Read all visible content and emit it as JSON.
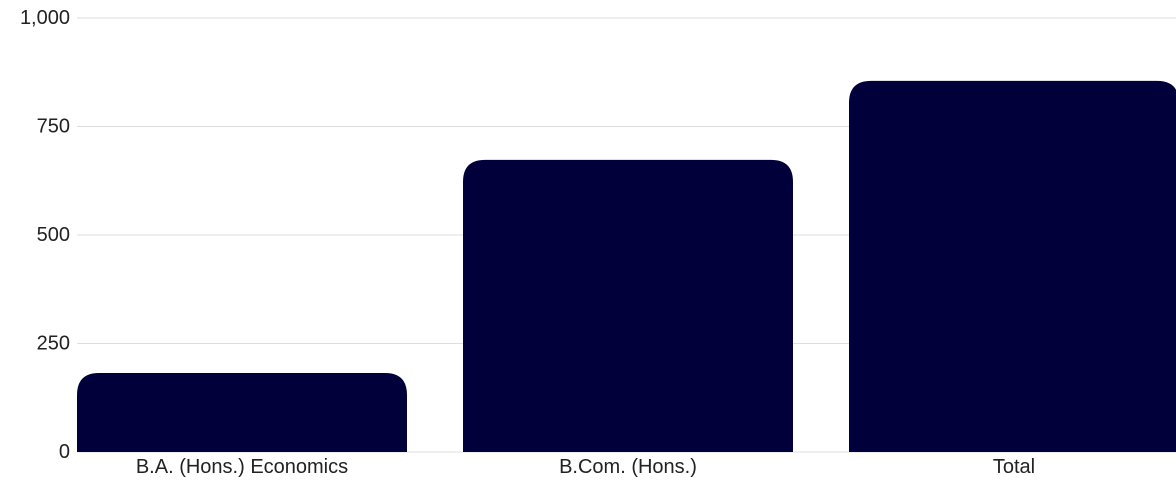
{
  "chart_data": {
    "type": "bar",
    "categories": [
      "B.A. (Hons.) Economics",
      "B.Com. (Hons.)",
      "Total"
    ],
    "values": [
      182,
      673,
      855
    ],
    "title": "",
    "xlabel": "",
    "ylabel": "",
    "ylim": [
      0,
      1000
    ],
    "y_ticks": [
      0,
      250,
      500,
      750,
      1000
    ],
    "y_tick_labels": [
      "0",
      "250",
      "500",
      "750",
      "1,000"
    ],
    "grid": true,
    "legend": "none",
    "colors": {
      "bar": "#02003a",
      "grid": "#dddddd",
      "text": "#222222"
    }
  }
}
